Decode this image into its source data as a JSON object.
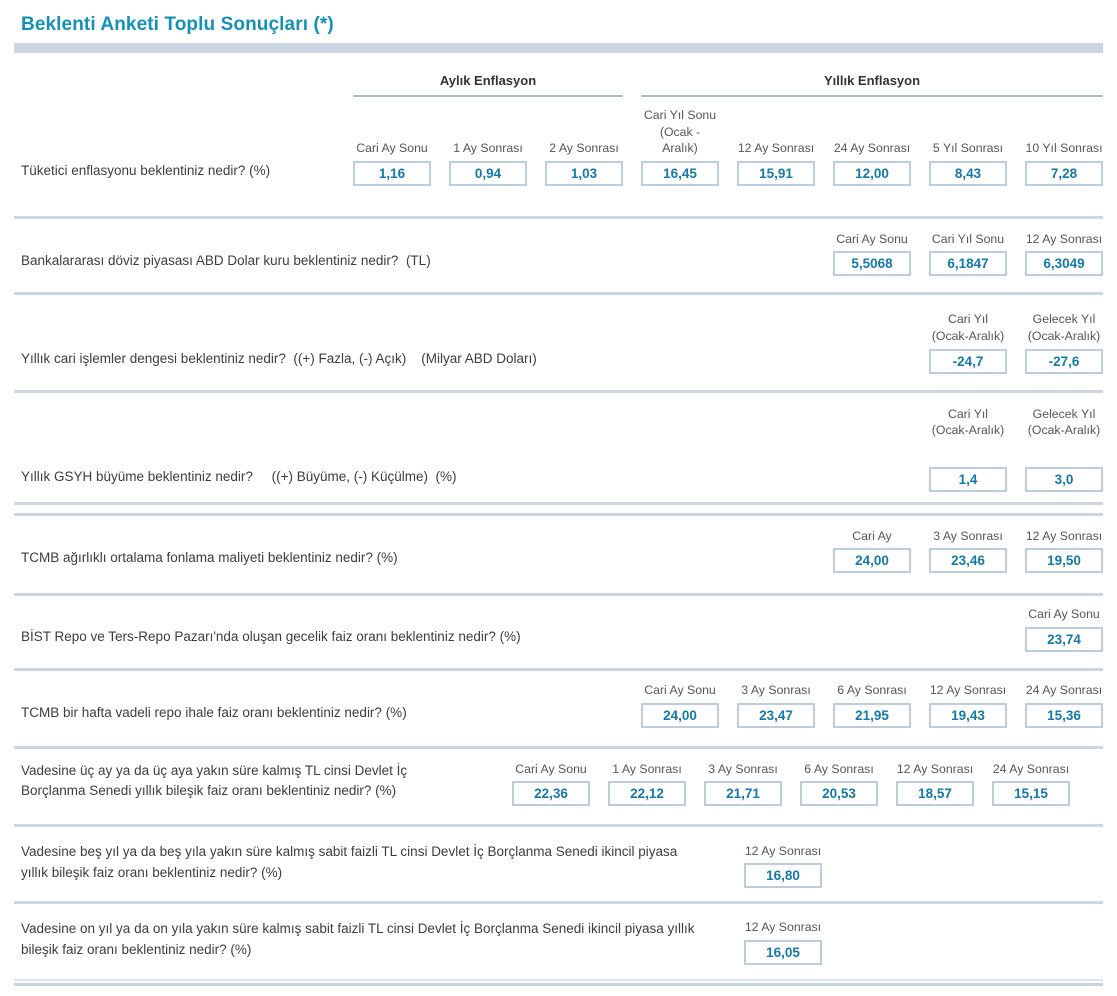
{
  "page": {
    "title": "Beklenti Anketi Toplu Sonuçları (*)"
  },
  "colors": {
    "accent_teal": "#1492b4",
    "value_text": "#137aa9",
    "divider": "#ccd7e2",
    "box_border": "#bccddd"
  },
  "rows": [
    {
      "question": "Tüketici enflasyonu beklentiniz nedir? (%)",
      "groups": [
        {
          "label": "Aylık Enflasyon",
          "span": 3
        },
        {
          "label": "Yıllık Enflasyon",
          "span": 5
        }
      ],
      "columns": [
        {
          "header": "Cari Ay Sonu",
          "value": "1,16"
        },
        {
          "header": "1 Ay Sonrası",
          "value": "0,94"
        },
        {
          "header": "2 Ay Sonrası",
          "value": "1,03"
        },
        {
          "header": "Cari Yıl Sonu\n(Ocak - Aralık)",
          "value": "16,45"
        },
        {
          "header": "12 Ay Sonrası",
          "value": "15,91"
        },
        {
          "header": "24 Ay Sonrası",
          "value": "12,00"
        },
        {
          "header": "5 Yıl Sonrası",
          "value": "8,43"
        },
        {
          "header": "10 Yıl Sonrası",
          "value": "7,28"
        }
      ]
    },
    {
      "question": "Bankalararası döviz piyasası ABD Dolar kuru beklentiniz nedir?  (TL)",
      "columns": [
        {
          "header": "Cari Ay Sonu",
          "value": "5,5068"
        },
        {
          "header": "Cari Yıl Sonu",
          "value": "6,1847"
        },
        {
          "header": "12 Ay Sonrası",
          "value": "6,3049"
        }
      ]
    },
    {
      "question": "Yıllık cari işlemler dengesi beklentiniz nedir?  ((+) Fazla, (-) Açık)    (Milyar ABD Doları)",
      "columns": [
        {
          "header": "Cari Yıl\n(Ocak-Aralık)",
          "value": "-24,7"
        },
        {
          "header": "Gelecek Yıl\n(Ocak-Aralık)",
          "value": "-27,6"
        }
      ]
    },
    {
      "question": "Yıllık GSYH büyüme beklentiniz nedir?     ((+) Büyüme, (-) Küçülme)  (%)",
      "columns": [
        {
          "header": "Cari Yıl\n(Ocak-Aralık)",
          "value": "1,4"
        },
        {
          "header": "Gelecek Yıl\n(Ocak-Aralık)",
          "value": "3,0"
        }
      ]
    },
    {
      "question": "TCMB ağırlıklı ortalama fonlama maliyeti beklentiniz nedir? (%)",
      "columns": [
        {
          "header": "Cari Ay",
          "value": "24,00"
        },
        {
          "header": "3 Ay Sonrası",
          "value": "23,46"
        },
        {
          "header": "12 Ay Sonrası",
          "value": "19,50"
        }
      ]
    },
    {
      "question": "BİST Repo ve Ters-Repo Pazarı'nda oluşan gecelik faiz oranı beklentiniz nedir? (%)",
      "columns": [
        {
          "header": "Cari Ay Sonu",
          "value": "23,74"
        }
      ]
    },
    {
      "question": "TCMB bir hafta vadeli repo ihale faiz oranı beklentiniz nedir? (%)",
      "columns": [
        {
          "header": "Cari Ay Sonu",
          "value": "24,00"
        },
        {
          "header": "3 Ay Sonrası",
          "value": "23,47"
        },
        {
          "header": "6 Ay Sonrası",
          "value": "21,95"
        },
        {
          "header": "12 Ay Sonrası",
          "value": "19,43"
        },
        {
          "header": "24 Ay Sonrası",
          "value": "15,36"
        }
      ]
    },
    {
      "question": "Vadesine üç ay ya da üç aya yakın süre kalmış TL cinsi Devlet İç Borçlanma Senedi yıllık bileşik faiz oranı beklentiniz nedir? (%)",
      "columns": [
        {
          "header": "Cari Ay Sonu",
          "value": "22,36"
        },
        {
          "header": "1 Ay Sonrası",
          "value": "22,12"
        },
        {
          "header": "3 Ay Sonrası",
          "value": "21,71"
        },
        {
          "header": "6 Ay Sonrası",
          "value": "20,53"
        },
        {
          "header": "12 Ay Sonrası",
          "value": "18,57"
        },
        {
          "header": "24 Ay Sonrası",
          "value": "15,15"
        }
      ]
    },
    {
      "question": "Vadesine beş yıl ya da beş yıla yakın süre kalmış sabit faizli TL cinsi Devlet İç Borçlanma Senedi ikincil piyasa yıllık bileşik faiz oranı beklentiniz nedir? (%)",
      "columns": [
        {
          "header": "12 Ay Sonrası",
          "value": "16,80"
        }
      ]
    },
    {
      "question": "Vadesine on yıl ya da on yıla yakın süre kalmış sabit faizli TL cinsi Devlet İç Borçlanma Senedi ikincil piyasa yıllık bileşik faiz oranı beklentiniz nedir? (%)",
      "columns": [
        {
          "header": "12 Ay Sonrası",
          "value": "16,05"
        }
      ]
    }
  ]
}
